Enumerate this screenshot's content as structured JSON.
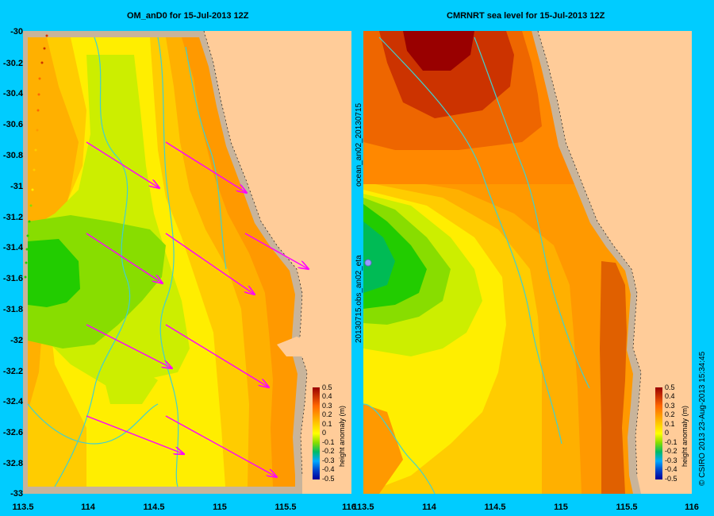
{
  "titles": {
    "left": "OM_anD0 for 15-Jul-2013 12Z",
    "right": "CMRNRT sea level  for 15-Jul-2013 12Z"
  },
  "y_ticks": [
    "-30",
    "-30.2",
    "-30.4",
    "-30.6",
    "-30.8",
    "-31",
    "-31.2",
    "-31.4",
    "-31.6",
    "-31.8",
    "-32",
    "-32.2",
    "-32.4",
    "-32.6",
    "-32.8",
    "-33"
  ],
  "x_ticks_left": [
    "113.5",
    "114",
    "114.5",
    "115",
    "115.5",
    "116"
  ],
  "x_ticks_right": [
    "113.5",
    "114",
    "114.5",
    "115",
    "115.5",
    "116"
  ],
  "colorbar": {
    "title": "height anomaly (m)",
    "labels": [
      "0.5",
      "0.4",
      "0.3",
      "0.2",
      "0.1",
      "0",
      "-0.1",
      "-0.2",
      "-0.3",
      "-0.4",
      "-0.5"
    ]
  },
  "side_text": {
    "file_label": "ocean_an02_20130715",
    "obs_label": "20130715.obs_an02_eta",
    "copyright": "© CSIRO 2013   23-Aug-2013 15:34:45"
  },
  "colors": {
    "background": "#00ccff",
    "land": "#ffcc99",
    "coast": "#c8b49b",
    "arrow": "#ff00ff",
    "contour": "#40d0d0"
  }
}
